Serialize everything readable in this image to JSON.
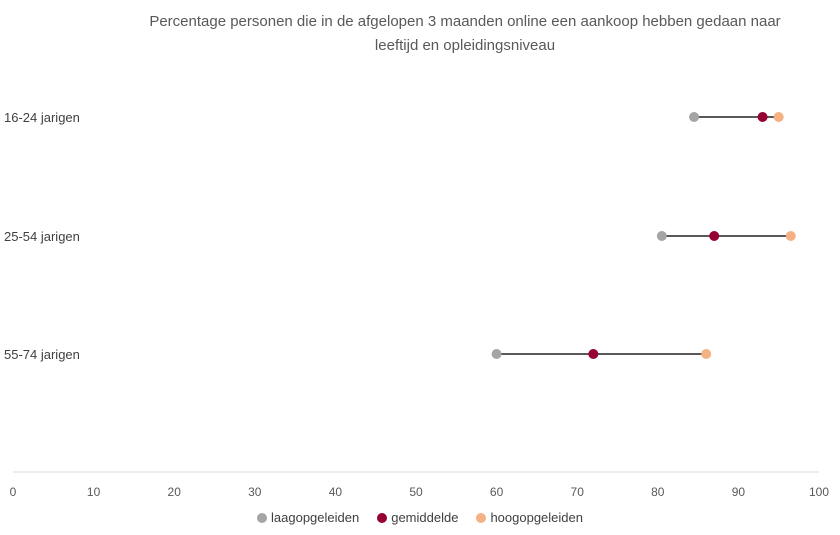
{
  "chart_data": {
    "type": "scatter",
    "title_line1": "Percentage personen die in de afgelopen 3 maanden online een aankoop hebben gedaan naar",
    "title_line2": "leeftijd en opleidingsniveau",
    "categories": [
      "16-24 jarigen",
      "25-54 jarigen",
      "55-74 jarigen"
    ],
    "series": [
      {
        "name": "laagopgeleiden",
        "color": "#a5a5a5",
        "values": [
          84.5,
          80.5,
          60
        ]
      },
      {
        "name": "gemiddelde",
        "color": "#960032",
        "values": [
          93,
          87,
          72
        ]
      },
      {
        "name": "hoogopgeleiden",
        "color": "#f4b183",
        "values": [
          95,
          96.5,
          86
        ]
      }
    ],
    "xlim": [
      0,
      100
    ],
    "xticks": [
      0,
      10,
      20,
      30,
      40,
      50,
      60,
      70,
      80,
      90,
      100
    ],
    "connector_color": "#595959",
    "axis_color": "#d9d9d9",
    "grid": false,
    "legend_position": "bottom"
  }
}
